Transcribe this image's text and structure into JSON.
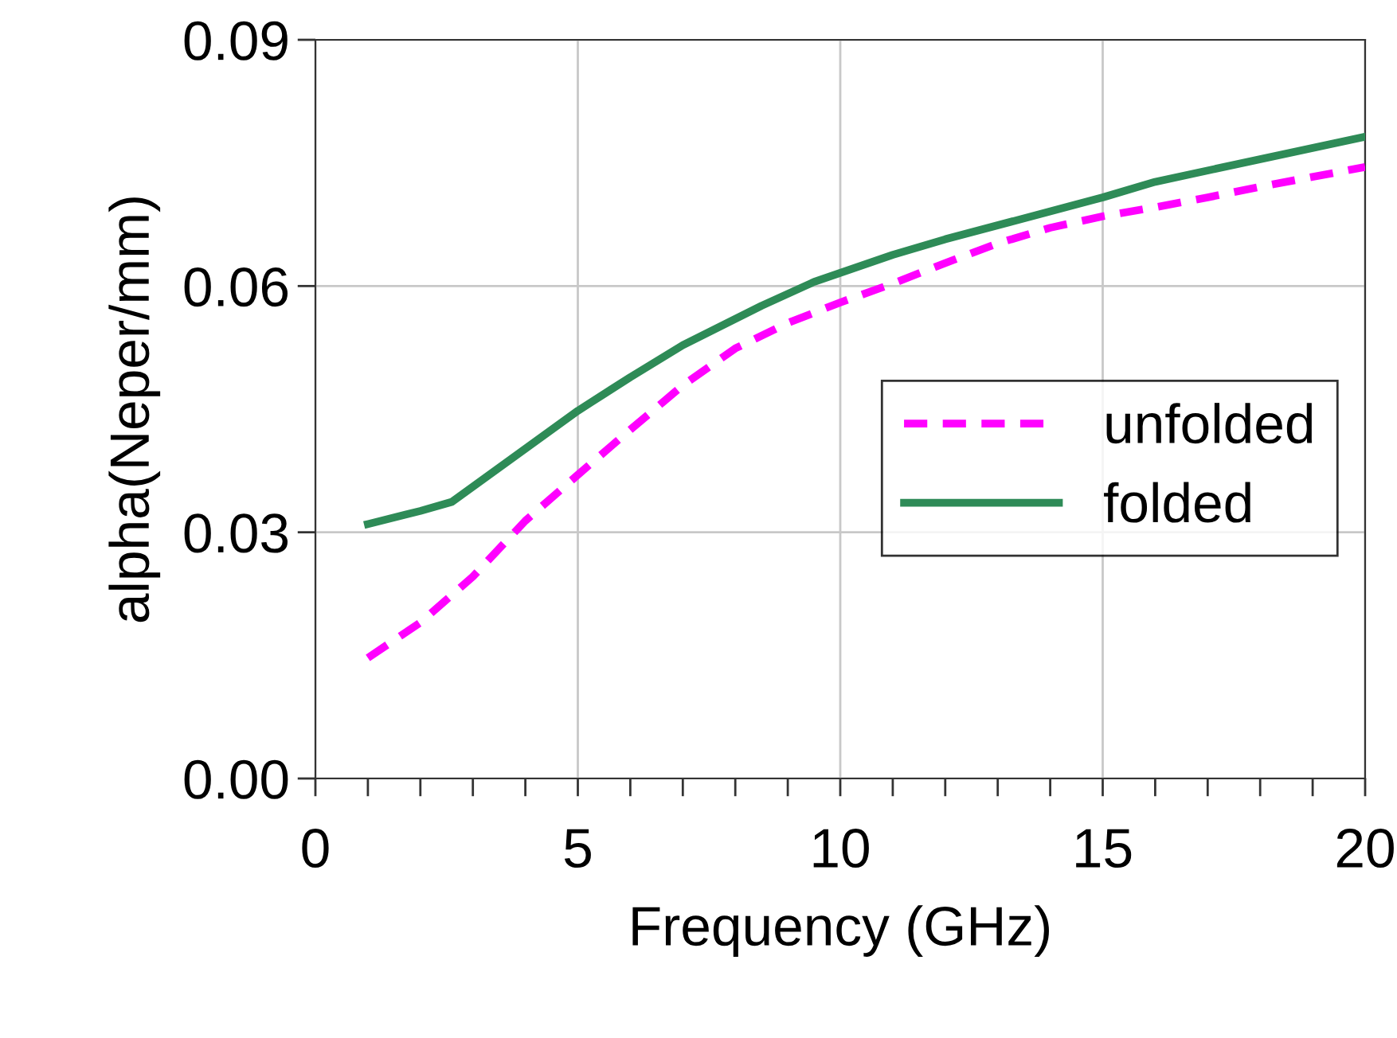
{
  "chart_data": {
    "type": "line",
    "xlabel": "Frequency (GHz)",
    "ylabel": "alpha(Neper/mm)",
    "xlim": [
      0,
      20
    ],
    "ylim": [
      0,
      0.09
    ],
    "xticks": [
      0,
      {
        "value": 1,
        "label": null
      },
      {
        "value": 2,
        "label": null
      },
      {
        "value": 3,
        "label": null
      },
      {
        "value": 4,
        "label": null
      },
      5,
      {
        "value": 6,
        "label": null
      },
      {
        "value": 7,
        "label": null
      },
      {
        "value": 8,
        "label": null
      },
      {
        "value": 9,
        "label": null
      },
      10,
      {
        "value": 11,
        "label": null
      },
      {
        "value": 12,
        "label": null
      },
      {
        "value": 13,
        "label": null
      },
      {
        "value": 14,
        "label": null
      },
      15,
      {
        "value": 16,
        "label": null
      },
      {
        "value": 17,
        "label": null
      },
      {
        "value": 18,
        "label": null
      },
      {
        "value": 19,
        "label": null
      },
      20
    ],
    "yticks": [
      {
        "value": 0,
        "label": "0.00"
      },
      {
        "value": 0.03,
        "label": "0.03"
      },
      {
        "value": 0.06,
        "label": "0.06"
      },
      {
        "value": 0.09,
        "label": "0.09"
      }
    ],
    "grid": true,
    "legend": "right",
    "marker": "none",
    "series": [
      {
        "name": "unfolded",
        "color": "#ff00ff",
        "line_style": "dashed",
        "x": [
          1,
          2,
          3,
          4,
          5,
          6,
          7,
          8,
          9,
          10,
          11,
          12,
          13,
          14,
          15,
          16,
          17,
          18,
          20
        ],
        "values": [
          0.0147,
          0.019,
          0.0246,
          0.0314,
          0.037,
          0.0425,
          0.0479,
          0.0524,
          0.0555,
          0.058,
          0.0603,
          0.0628,
          0.0652,
          0.0671,
          0.0685,
          0.0696,
          0.0708,
          0.0721,
          0.0745
        ]
      },
      {
        "name": "folded",
        "color": "#2e8b57",
        "line_style": "solid",
        "x": [
          1,
          2,
          2.6,
          5,
          6,
          7,
          8.5,
          9.5,
          11,
          12,
          15,
          16,
          20
        ],
        "values": [
          0.031,
          0.0326,
          0.0337,
          0.0448,
          0.0489,
          0.0528,
          0.0576,
          0.0605,
          0.0638,
          0.0657,
          0.0708,
          0.0727,
          0.0782
        ]
      }
    ]
  }
}
